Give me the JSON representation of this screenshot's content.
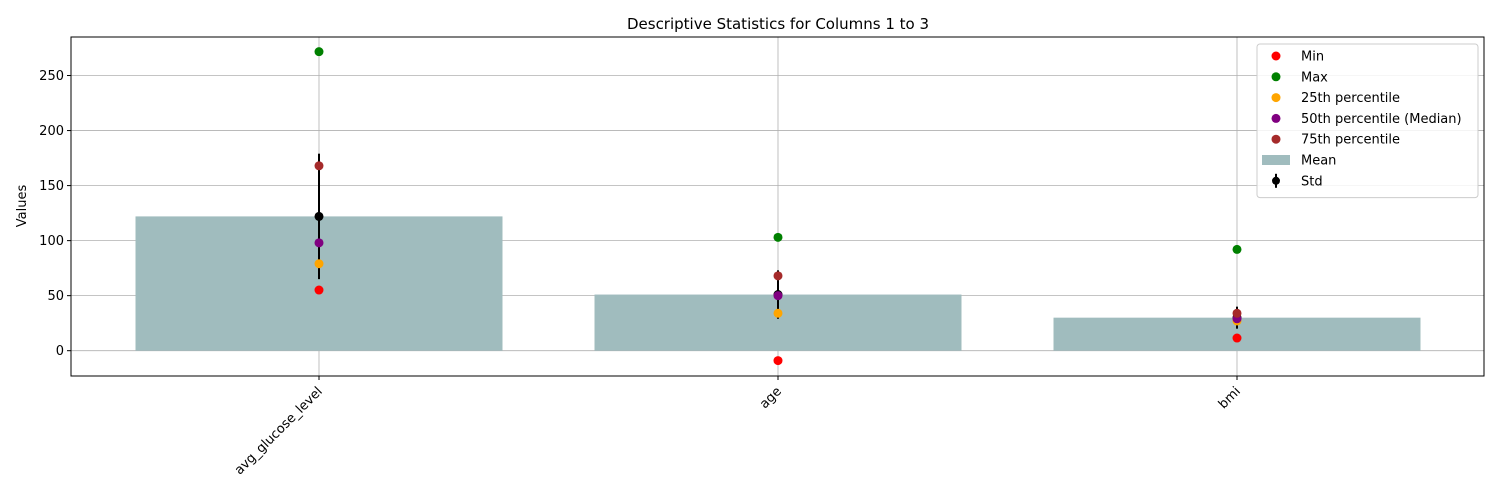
{
  "chart_data": {
    "type": "bar",
    "title": "Descriptive Statistics for Columns 1 to 3",
    "xlabel": "",
    "ylabel": "Values",
    "categories": [
      "avg_glucose_level",
      "age",
      "bmi"
    ],
    "ylim": [
      -23,
      285
    ],
    "yticks": [
      0,
      50,
      100,
      150,
      200,
      250
    ],
    "grid": true,
    "legend_position": "top-right",
    "bars": {
      "name": "Mean",
      "color": "#a0bcbe",
      "values": [
        122,
        51,
        30
      ]
    },
    "error": {
      "name": "Std",
      "color": "#000000",
      "center": [
        122,
        51,
        30
      ],
      "std": [
        57,
        22,
        10
      ]
    },
    "series": [
      {
        "name": "Min",
        "color": "#ff0000",
        "values": [
          55.1,
          -9,
          11.5
        ]
      },
      {
        "name": "Max",
        "color": "#008000",
        "values": [
          271.7,
          103,
          92
        ]
      },
      {
        "name": "25th percentile",
        "color": "#ffa500",
        "values": [
          79,
          34,
          27
        ]
      },
      {
        "name": "50th percentile (Median)",
        "color": "#800080",
        "values": [
          98,
          50,
          29
        ]
      },
      {
        "name": "75th percentile",
        "color": "#a52a2a",
        "values": [
          168,
          68,
          34
        ]
      }
    ]
  }
}
